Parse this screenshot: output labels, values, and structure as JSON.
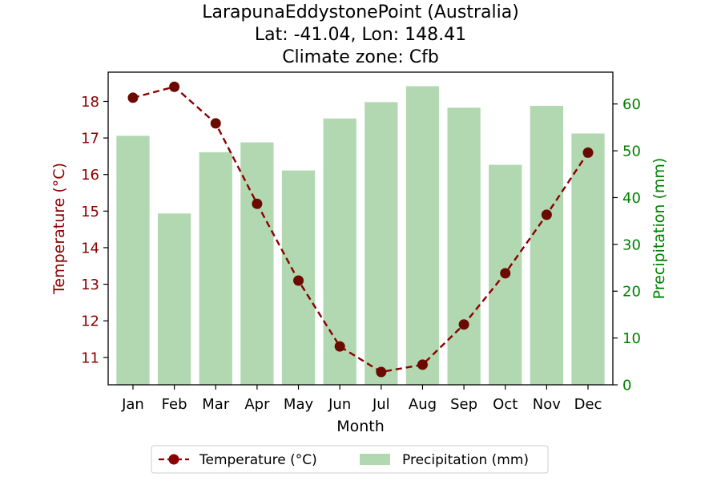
{
  "chart_data": {
    "type": "bar+line",
    "title_lines": [
      "LarapunaEddystonePoint (Australia)",
      "Lat: -41.04, Lon: 148.41",
      "Climate zone: Cfb"
    ],
    "xlabel": "Month",
    "categories": [
      "Jan",
      "Feb",
      "Mar",
      "Apr",
      "May",
      "Jun",
      "Jul",
      "Aug",
      "Sep",
      "Oct",
      "Nov",
      "Dec"
    ],
    "temperature": {
      "name": "Temperature (°C)",
      "axis_label": "Temperature (°C)",
      "values": [
        18.1,
        18.4,
        17.4,
        15.2,
        13.1,
        11.3,
        10.6,
        10.8,
        11.9,
        13.3,
        14.9,
        16.6
      ],
      "ylim": [
        10.25,
        18.8
      ],
      "ticks": [
        11,
        12,
        13,
        14,
        15,
        16,
        17,
        18
      ],
      "color": "#8b0000",
      "marker_color": "#6b0a00",
      "line_style": "dashed",
      "marker": "circle"
    },
    "precipitation": {
      "name": "Precipitation (mm)",
      "axis_label": "Precipitation (mm)",
      "values": [
        53.2,
        36.6,
        49.7,
        51.8,
        45.8,
        56.9,
        60.4,
        63.8,
        59.2,
        47.0,
        59.6,
        53.7
      ],
      "ylim": [
        0,
        66.8
      ],
      "ticks": [
        0,
        10,
        20,
        30,
        40,
        50,
        60
      ],
      "color": "#b2d8b2",
      "axis_color": "#008000"
    },
    "legend": {
      "placement": "bottom-center"
    },
    "grid": false
  }
}
